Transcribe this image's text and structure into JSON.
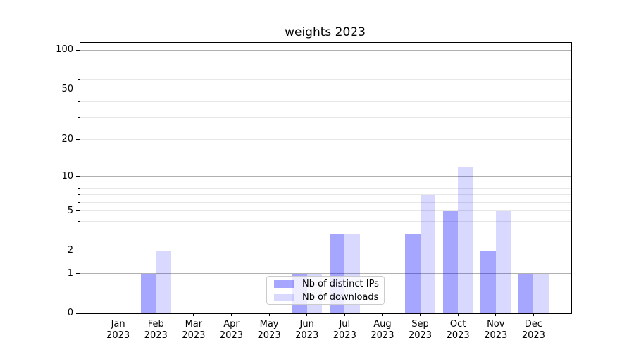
{
  "chart_data": {
    "type": "bar",
    "title": "weights 2023",
    "categories": [
      "Jan",
      "Feb",
      "Mar",
      "Apr",
      "May",
      "Jun",
      "Jul",
      "Aug",
      "Sep",
      "Oct",
      "Nov",
      "Dec"
    ],
    "category_year": "2023",
    "series": [
      {
        "name": "Nb of distinct IPs",
        "values": [
          0,
          1,
          0,
          0,
          0,
          1,
          3,
          0,
          3,
          5,
          2,
          1
        ],
        "color": "rgba(0,0,255,0.35)"
      },
      {
        "name": "Nb of downloads",
        "values": [
          0,
          2,
          0,
          0,
          0,
          1,
          3,
          0,
          7,
          12,
          5,
          1
        ],
        "color": "rgba(0,0,255,0.15)"
      }
    ],
    "y_scale": "log1p",
    "y_ticks": [
      0,
      1,
      2,
      5,
      10,
      20,
      50,
      100
    ],
    "y_minor_ticks": [
      3,
      4,
      6,
      7,
      8,
      9,
      30,
      40,
      60,
      70,
      80,
      90
    ],
    "grid": {
      "major": [
        1,
        10,
        100
      ],
      "minor": [
        2,
        3,
        4,
        5,
        6,
        7,
        8,
        9,
        20,
        30,
        40,
        50,
        60,
        70,
        80,
        90
      ],
      "major_color": "#b0b0b0",
      "minor_color": "#e7e7e7"
    },
    "ylim": [
      0,
      114
    ],
    "xlabel": "",
    "ylabel": "",
    "legend_position": "lower-center-inside",
    "background_color": "#ffffff",
    "spine_color": "#000000"
  }
}
